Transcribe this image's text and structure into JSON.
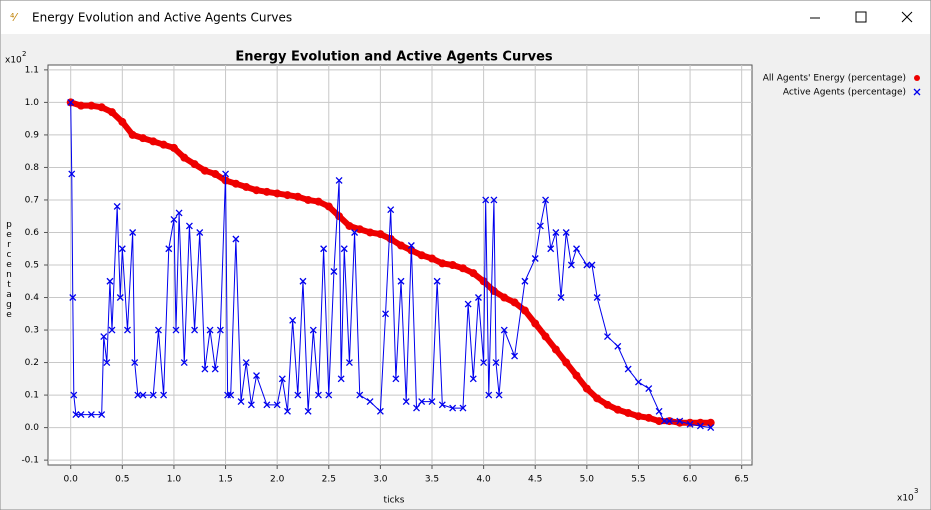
{
  "window": {
    "title": "Energy Evolution and Active Agents Curves"
  },
  "chart_data": {
    "type": "line-scatter",
    "title": "Energy Evolution and Active Agents Curves",
    "x_label": "ticks",
    "y_label": "percentage",
    "y_multiplier": {
      "base": "x10",
      "exponent": 2
    },
    "x_multiplier": {
      "base": "x10",
      "exponent": 3
    },
    "xlim": [
      -0.22,
      6.6
    ],
    "ylim": [
      -0.115,
      1.115
    ],
    "xticks": [
      {
        "value": 0,
        "label": "0.0"
      },
      0.5,
      {
        "value": 1,
        "label": "1.0"
      },
      1.5,
      {
        "value": 2,
        "label": "2.0"
      },
      2.5,
      {
        "value": 3,
        "label": "3.0"
      },
      3.5,
      {
        "value": 4,
        "label": "4.0"
      },
      4.5,
      {
        "value": 5,
        "label": "5.0"
      },
      5.5,
      {
        "value": 6,
        "label": "6.0"
      },
      6.5
    ],
    "yticks": [
      -0.1,
      {
        "value": 0,
        "label": "0.0"
      },
      0.1,
      0.2,
      0.3,
      0.4,
      0.5,
      0.6,
      0.7,
      0.8,
      0.9,
      {
        "value": 1,
        "label": "1.0"
      },
      1.1
    ],
    "grid": true,
    "legend": "outside-top-right",
    "series": [
      {
        "name": "All Agents' Energy (percentage)",
        "color": "#ee0000",
        "marker": "circle",
        "x": [
          0,
          0.1,
          0.2,
          0.3,
          0.4,
          0.5,
          0.6,
          0.7,
          0.8,
          0.9,
          1.0,
          1.1,
          1.2,
          1.3,
          1.4,
          1.5,
          1.6,
          1.7,
          1.8,
          1.9,
          2.0,
          2.1,
          2.2,
          2.3,
          2.4,
          2.5,
          2.6,
          2.7,
          2.8,
          2.9,
          3.0,
          3.1,
          3.2,
          3.3,
          3.4,
          3.5,
          3.6,
          3.7,
          3.8,
          3.9,
          4.0,
          4.1,
          4.2,
          4.3,
          4.4,
          4.5,
          4.6,
          4.7,
          4.8,
          4.9,
          5.0,
          5.1,
          5.2,
          5.3,
          5.4,
          5.5,
          5.6,
          5.7,
          5.8,
          5.9,
          6.0,
          6.1,
          6.2
        ],
        "values": [
          1.0,
          0.99,
          0.99,
          0.985,
          0.97,
          0.94,
          0.9,
          0.89,
          0.88,
          0.87,
          0.86,
          0.83,
          0.81,
          0.79,
          0.78,
          0.76,
          0.75,
          0.74,
          0.73,
          0.725,
          0.72,
          0.715,
          0.71,
          0.7,
          0.695,
          0.68,
          0.65,
          0.62,
          0.61,
          0.6,
          0.595,
          0.58,
          0.56,
          0.545,
          0.53,
          0.52,
          0.505,
          0.5,
          0.49,
          0.475,
          0.45,
          0.42,
          0.4,
          0.385,
          0.36,
          0.32,
          0.28,
          0.24,
          0.2,
          0.16,
          0.12,
          0.09,
          0.07,
          0.055,
          0.045,
          0.035,
          0.03,
          0.02,
          0.02,
          0.015,
          0.015,
          0.015,
          0.015
        ]
      },
      {
        "name": "Active Agents (percentage)",
        "color": "#0000ee",
        "marker": "x",
        "x": [
          0,
          0.01,
          0.02,
          0.03,
          0.05,
          0.1,
          0.2,
          0.3,
          0.32,
          0.35,
          0.38,
          0.4,
          0.45,
          0.48,
          0.5,
          0.55,
          0.6,
          0.62,
          0.65,
          0.7,
          0.8,
          0.85,
          0.9,
          0.95,
          1.0,
          1.02,
          1.05,
          1.1,
          1.15,
          1.2,
          1.25,
          1.3,
          1.35,
          1.4,
          1.45,
          1.5,
          1.52,
          1.55,
          1.6,
          1.65,
          1.7,
          1.75,
          1.8,
          1.9,
          2.0,
          2.05,
          2.1,
          2.15,
          2.2,
          2.25,
          2.3,
          2.35,
          2.4,
          2.45,
          2.5,
          2.55,
          2.6,
          2.62,
          2.65,
          2.7,
          2.75,
          2.8,
          2.9,
          3.0,
          3.05,
          3.1,
          3.15,
          3.2,
          3.25,
          3.3,
          3.35,
          3.4,
          3.5,
          3.55,
          3.6,
          3.7,
          3.8,
          3.85,
          3.9,
          3.95,
          4.0,
          4.02,
          4.05,
          4.1,
          4.12,
          4.15,
          4.2,
          4.3,
          4.4,
          4.5,
          4.55,
          4.6,
          4.65,
          4.7,
          4.75,
          4.8,
          4.85,
          4.9,
          5.0,
          5.05,
          5.1,
          5.2,
          5.3,
          5.4,
          5.5,
          5.6,
          5.7,
          5.75,
          5.8,
          5.9,
          6.0,
          6.1,
          6.2
        ],
        "values": [
          1.0,
          0.78,
          0.4,
          0.1,
          0.04,
          0.04,
          0.04,
          0.04,
          0.28,
          0.2,
          0.45,
          0.3,
          0.68,
          0.4,
          0.55,
          0.3,
          0.6,
          0.2,
          0.1,
          0.1,
          0.1,
          0.3,
          0.1,
          0.55,
          0.64,
          0.3,
          0.66,
          0.2,
          0.62,
          0.3,
          0.6,
          0.18,
          0.3,
          0.18,
          0.3,
          0.78,
          0.1,
          0.1,
          0.58,
          0.08,
          0.2,
          0.07,
          0.16,
          0.07,
          0.07,
          0.15,
          0.05,
          0.33,
          0.1,
          0.45,
          0.05,
          0.3,
          0.1,
          0.55,
          0.1,
          0.48,
          0.76,
          0.15,
          0.55,
          0.2,
          0.6,
          0.1,
          0.08,
          0.05,
          0.35,
          0.67,
          0.15,
          0.45,
          0.08,
          0.56,
          0.06,
          0.08,
          0.08,
          0.45,
          0.07,
          0.06,
          0.06,
          0.38,
          0.15,
          0.4,
          0.2,
          0.7,
          0.1,
          0.7,
          0.2,
          0.1,
          0.3,
          0.22,
          0.45,
          0.52,
          0.62,
          0.7,
          0.55,
          0.6,
          0.4,
          0.6,
          0.5,
          0.55,
          0.5,
          0.5,
          0.4,
          0.28,
          0.25,
          0.18,
          0.14,
          0.12,
          0.05,
          0.02,
          0.02,
          0.02,
          0.01,
          0.005,
          0.0
        ]
      }
    ]
  }
}
